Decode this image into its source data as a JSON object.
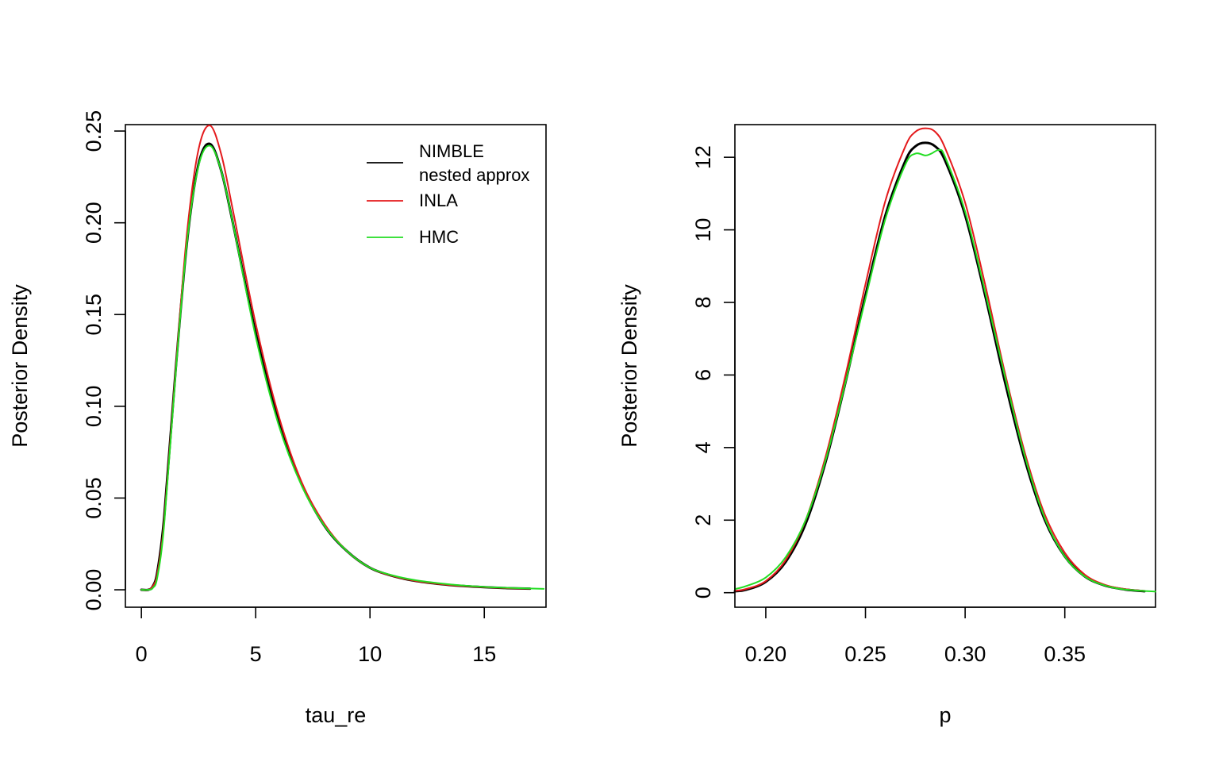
{
  "chart_data": [
    {
      "type": "line",
      "title": "",
      "xlabel": "tau_re",
      "ylabel": "Posterior Density",
      "xlim": [
        -0.7,
        17.7
      ],
      "ylim": [
        -0.0095,
        0.2535
      ],
      "xticks": [
        0,
        5,
        10,
        15
      ],
      "xtick_labels": [
        "0",
        "5",
        "10",
        "15"
      ],
      "yticks": [
        0.0,
        0.05,
        0.1,
        0.15,
        0.2,
        0.25
      ],
      "ytick_labels": [
        "0.00",
        "0.05",
        "0.10",
        "0.15",
        "0.20",
        "0.25"
      ],
      "legend": {
        "position": "top-right",
        "entries": [
          {
            "label_lines": [
              "NIMBLE",
              "nested approx"
            ],
            "color": "#000000"
          },
          {
            "label_lines": [
              "INLA"
            ],
            "color": "#e41a1c"
          },
          {
            "label_lines": [
              "HMC"
            ],
            "color": "#22dd22"
          }
        ]
      },
      "series": [
        {
          "name": "NIMBLE nested approx",
          "color": "#000000",
          "x": [
            0.0,
            0.3,
            0.5,
            0.7,
            1.0,
            1.5,
            2.0,
            2.5,
            3.0,
            3.5,
            4.0,
            5.0,
            6.0,
            7.0,
            8.0,
            9.0,
            10.0,
            11.0,
            12.0,
            13.0,
            14.0,
            15.0,
            16.0,
            17.0
          ],
          "values": [
            0.0,
            0.0,
            0.002,
            0.01,
            0.04,
            0.12,
            0.19,
            0.232,
            0.243,
            0.228,
            0.2,
            0.14,
            0.092,
            0.058,
            0.035,
            0.021,
            0.012,
            0.0075,
            0.0048,
            0.0032,
            0.0021,
            0.0014,
            0.0009,
            0.0006
          ]
        },
        {
          "name": "INLA",
          "color": "#e41a1c",
          "x": [
            0.0,
            0.3,
            0.5,
            0.7,
            1.0,
            1.5,
            2.0,
            2.5,
            3.0,
            3.5,
            4.0,
            5.0,
            6.0,
            7.0,
            8.0,
            9.0,
            10.0,
            11.0,
            12.0,
            13.0,
            14.0,
            15.0,
            16.0,
            17.0
          ],
          "values": [
            0.0,
            0.0,
            0.002,
            0.009,
            0.038,
            0.12,
            0.195,
            0.24,
            0.253,
            0.237,
            0.207,
            0.145,
            0.095,
            0.059,
            0.036,
            0.021,
            0.012,
            0.0075,
            0.0048,
            0.0032,
            0.0021,
            0.0014,
            0.0009,
            0.0006
          ]
        },
        {
          "name": "HMC",
          "color": "#22dd22",
          "x": [
            0.0,
            0.3,
            0.5,
            0.7,
            1.0,
            1.5,
            2.0,
            2.5,
            3.0,
            3.5,
            4.0,
            5.0,
            6.0,
            7.0,
            8.0,
            9.0,
            10.0,
            11.0,
            12.0,
            13.0,
            14.0,
            15.0,
            16.0,
            17.0,
            17.6
          ],
          "values": [
            0.0,
            0.0,
            0.001,
            0.007,
            0.036,
            0.118,
            0.19,
            0.231,
            0.242,
            0.228,
            0.2,
            0.138,
            0.09,
            0.057,
            0.035,
            0.021,
            0.012,
            0.0078,
            0.0052,
            0.0036,
            0.0024,
            0.0016,
            0.0011,
            0.0007,
            0.0005
          ]
        }
      ]
    },
    {
      "type": "line",
      "title": "",
      "xlabel": "p",
      "ylabel": "Posterior Density",
      "xlim": [
        0.1845,
        0.3955
      ],
      "ylim": [
        -0.4,
        12.9
      ],
      "xticks": [
        0.2,
        0.25,
        0.3,
        0.35
      ],
      "xtick_labels": [
        "0.20",
        "0.25",
        "0.30",
        "0.35"
      ],
      "yticks": [
        0,
        2,
        4,
        6,
        8,
        10,
        12
      ],
      "ytick_labels": [
        "0",
        "2",
        "4",
        "6",
        "8",
        "10",
        "12"
      ],
      "series": [
        {
          "name": "NIMBLE nested approx",
          "color": "#000000",
          "x": [
            0.1845,
            0.19,
            0.2,
            0.21,
            0.22,
            0.23,
            0.24,
            0.25,
            0.26,
            0.27,
            0.275,
            0.28,
            0.285,
            0.29,
            0.3,
            0.31,
            0.32,
            0.33,
            0.34,
            0.35,
            0.36,
            0.37,
            0.38,
            0.39
          ],
          "values": [
            0.04,
            0.08,
            0.3,
            0.85,
            1.9,
            3.6,
            5.8,
            8.2,
            10.4,
            11.9,
            12.3,
            12.4,
            12.3,
            11.9,
            10.4,
            8.2,
            5.8,
            3.65,
            2.0,
            1.0,
            0.45,
            0.2,
            0.09,
            0.04
          ]
        },
        {
          "name": "INLA",
          "color": "#e41a1c",
          "x": [
            0.1845,
            0.19,
            0.2,
            0.21,
            0.22,
            0.23,
            0.24,
            0.25,
            0.26,
            0.27,
            0.275,
            0.28,
            0.285,
            0.29,
            0.3,
            0.31,
            0.32,
            0.33,
            0.34,
            0.35,
            0.36,
            0.37,
            0.38,
            0.39
          ],
          "values": [
            0.05,
            0.1,
            0.32,
            0.9,
            2.0,
            3.75,
            6.0,
            8.5,
            10.8,
            12.3,
            12.7,
            12.8,
            12.7,
            12.25,
            10.75,
            8.5,
            6.05,
            3.85,
            2.15,
            1.1,
            0.5,
            0.22,
            0.1,
            0.05
          ]
        },
        {
          "name": "HMC",
          "color": "#22dd22",
          "x": [
            0.1845,
            0.19,
            0.2,
            0.21,
            0.22,
            0.23,
            0.24,
            0.25,
            0.26,
            0.27,
            0.275,
            0.28,
            0.283,
            0.287,
            0.29,
            0.3,
            0.31,
            0.32,
            0.33,
            0.34,
            0.35,
            0.36,
            0.37,
            0.38,
            0.3955
          ],
          "values": [
            0.1,
            0.18,
            0.42,
            0.98,
            2.0,
            3.65,
            5.8,
            8.1,
            10.3,
            11.8,
            12.1,
            12.05,
            12.1,
            12.2,
            12.0,
            10.5,
            8.3,
            5.95,
            3.75,
            2.05,
            1.0,
            0.45,
            0.2,
            0.09,
            0.03
          ]
        }
      ]
    }
  ]
}
